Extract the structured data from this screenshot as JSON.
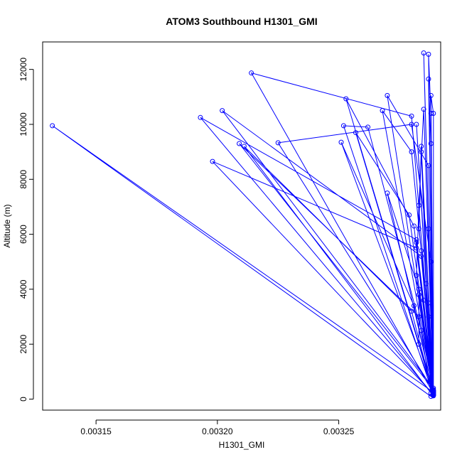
{
  "chart_data": {
    "type": "line",
    "title": "ATOM3 Southbound H1301_GMI",
    "xlabel": "H1301_GMI",
    "ylabel": "Altitude (m)",
    "xlim": [
      0.003128,
      0.003292
    ],
    "ylim": [
      -400,
      13000
    ],
    "xticks": [
      0.00315,
      0.0032,
      0.00325
    ],
    "xtick_labels": [
      "0.00315",
      "0.00320",
      "0.00325"
    ],
    "yticks": [
      0,
      2000,
      4000,
      6000,
      8000,
      10000,
      12000
    ],
    "ytick_labels": [
      "0",
      "2000",
      "4000",
      "6000",
      "8000",
      "10000",
      "12000"
    ],
    "grid": false,
    "series_color": "#0000ff",
    "marker": "open-circle",
    "series": [
      {
        "points": [
          [
            0.003289,
            300
          ],
          [
            0.003287,
            3500
          ],
          [
            0.003284,
            9000
          ],
          [
            0.003288,
            100
          ],
          [
            0.003132,
            9950
          ],
          [
            0.003289,
            250
          ],
          [
            0.003286,
            4200
          ],
          [
            0.003282,
            10000
          ],
          [
            0.003289,
            150
          ],
          [
            0.003193,
            10250
          ],
          [
            0.003282,
            5800
          ],
          [
            0.003289,
            400
          ],
          [
            0.003202,
            10500
          ],
          [
            0.003284,
            5200
          ],
          [
            0.003289,
            200
          ],
          [
            0.003214,
            11870
          ],
          [
            0.00328,
            10300
          ],
          [
            0.003289,
            350
          ],
          [
            0.003209,
            9300
          ],
          [
            0.003283,
            3000
          ],
          [
            0.003288,
            220
          ],
          [
            0.003211,
            9200
          ],
          [
            0.00328,
            3200
          ],
          [
            0.003289,
            180
          ],
          [
            0.003198,
            8650
          ],
          [
            0.003282,
            5500
          ],
          [
            0.003289,
            320
          ],
          [
            0.003225,
            9330
          ],
          [
            0.00328,
            10000
          ],
          [
            0.003288,
            5000
          ],
          [
            0.003289,
            260
          ],
          [
            0.003253,
            10930
          ],
          [
            0.003281,
            6300
          ],
          [
            0.003289,
            140
          ],
          [
            0.003252,
            9950
          ],
          [
            0.003262,
            9900
          ],
          [
            0.003284,
            2500
          ],
          [
            0.003289,
            300
          ],
          [
            0.003251,
            9350
          ],
          [
            0.003281,
            3400
          ],
          [
            0.003289,
            200
          ],
          [
            0.003257,
            9700
          ],
          [
            0.003279,
            6700
          ],
          [
            0.003289,
            280
          ],
          [
            0.003268,
            10500
          ],
          [
            0.00328,
            9000
          ],
          [
            0.003284,
            5400
          ],
          [
            0.003289,
            150
          ],
          [
            0.00327,
            11050
          ],
          [
            0.003287,
            8500
          ],
          [
            0.003289,
            230
          ],
          [
            0.00327,
            7500
          ],
          [
            0.003283,
            4000
          ],
          [
            0.003289,
            300
          ],
          [
            0.003285,
            12600
          ],
          [
            0.003287,
            6200
          ],
          [
            0.003289,
            170
          ],
          [
            0.003287,
            12550
          ],
          [
            0.003288,
            10400
          ],
          [
            0.003289,
            240
          ],
          [
            0.003287,
            11650
          ],
          [
            0.003288,
            9300
          ],
          [
            0.003289,
            130
          ],
          [
            0.003285,
            10550
          ],
          [
            0.003283,
            7050
          ],
          [
            0.003282,
            4500
          ],
          [
            0.003289,
            310
          ],
          [
            0.003288,
            11050
          ],
          [
            0.003289,
            10400
          ],
          [
            0.003289,
            200
          ],
          [
            0.003284,
            9200
          ],
          [
            0.003283,
            6200
          ],
          [
            0.003287,
            3000
          ],
          [
            0.003289,
            160
          ],
          [
            0.003283,
            3800
          ],
          [
            0.003283,
            2000
          ],
          [
            0.003289,
            250
          ],
          [
            0.003282,
            5700
          ],
          [
            0.003285,
            3600
          ],
          [
            0.003289,
            120
          ]
        ]
      }
    ]
  }
}
